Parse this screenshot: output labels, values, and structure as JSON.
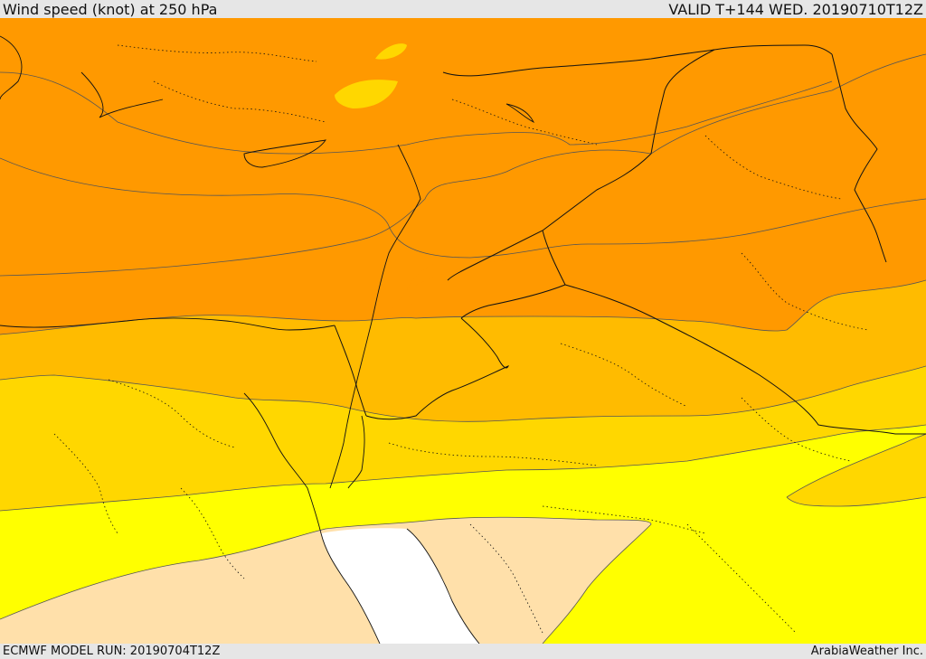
{
  "header": {
    "title": "Wind speed (knot) at 250 hPa",
    "valid": "VALID T+144 WED. 20190710T12Z"
  },
  "footer": {
    "model_run": "ECMWF MODEL RUN: 20190704T12Z",
    "credit": "ArabiaWeather Inc."
  },
  "map": {
    "colors": {
      "band_darkest": "#ff7f00",
      "band_dark": "#ff9900",
      "band_mid": "#ffbb00",
      "band_light": "#ffd700",
      "band_yellow": "#ffff00",
      "band_low": "#ffe0aa",
      "sea_white": "#ffffff",
      "contour": "#555555",
      "border": "#111111"
    }
  }
}
